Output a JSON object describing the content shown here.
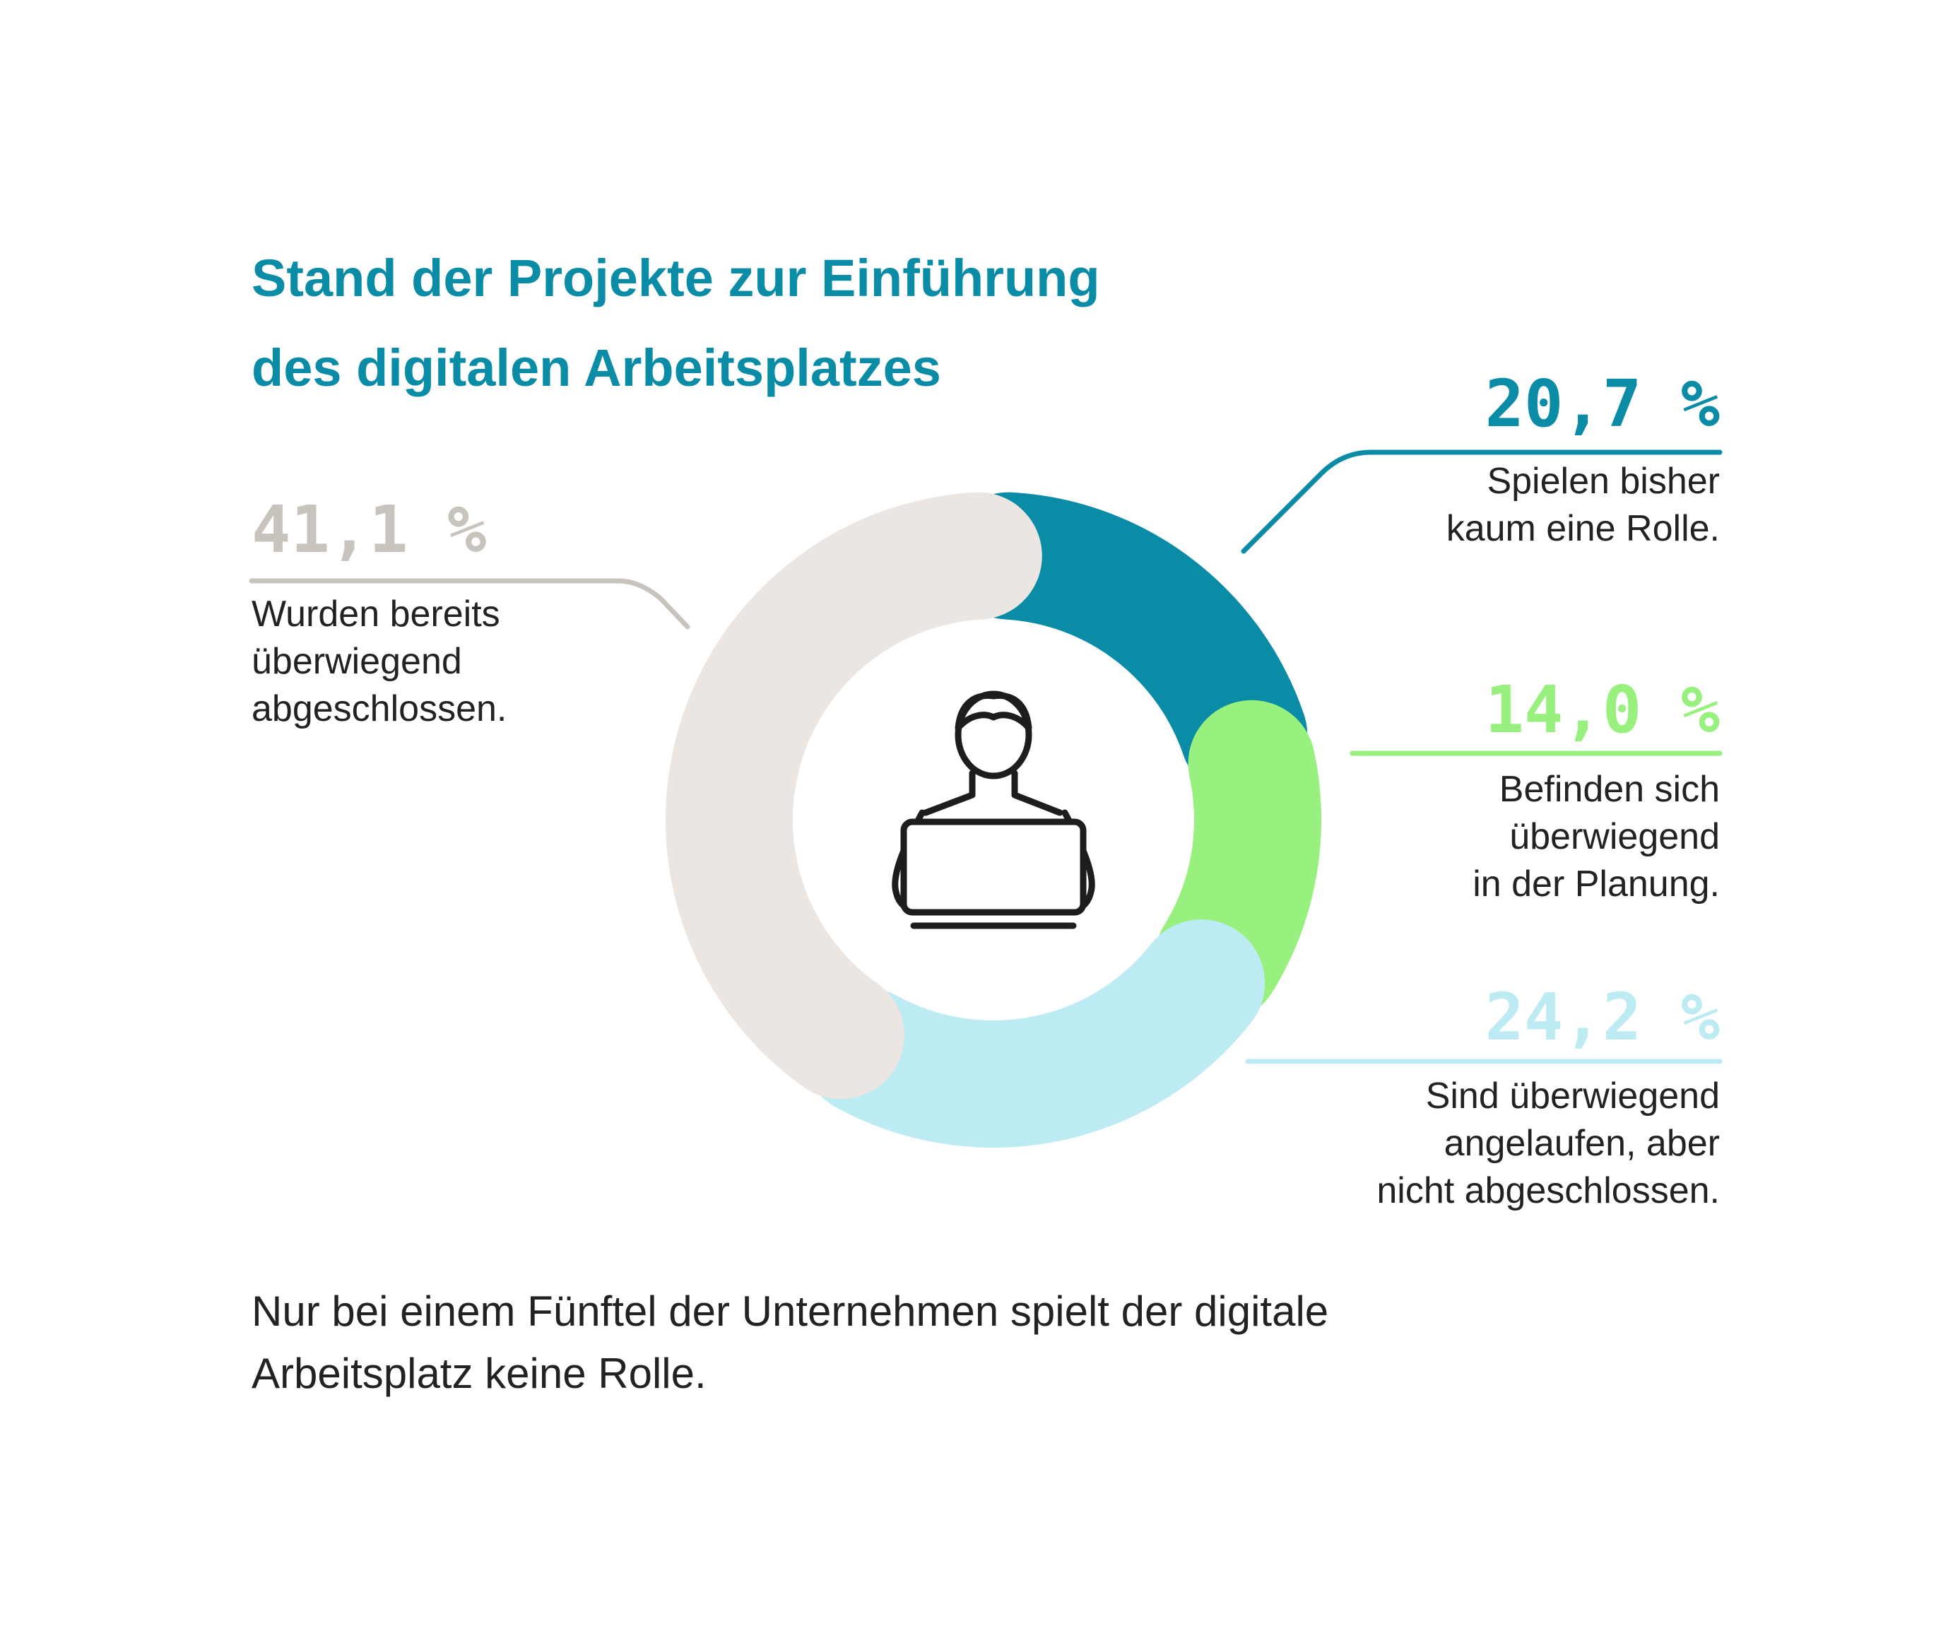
{
  "title_lines": [
    "Stand der Projekte zur Einführung",
    "des digitalen Arbeitsplatzes"
  ],
  "chart_data": {
    "type": "pie",
    "variant": "donut",
    "unit": "%",
    "slices": [
      {
        "value": 20.7,
        "label_value": "20,7 %",
        "label_lines": [
          "Spielen bisher",
          "kaum eine Rolle."
        ],
        "color": "#0a8ca7"
      },
      {
        "value": 14.0,
        "label_value": "14,0 %",
        "label_lines": [
          "Befinden sich",
          "überwiegend",
          "in der Planung."
        ],
        "color": "#98f07e"
      },
      {
        "value": 24.2,
        "label_value": "24,2 %",
        "label_lines": [
          "Sind überwiegend",
          "angelaufen, aber",
          "nicht abgeschlossen."
        ],
        "color": "#bdebf3"
      },
      {
        "value": 41.1,
        "label_value": "41,1 %",
        "label_lines": [
          "Wurden bereits",
          "überwiegend",
          "abgeschlossen."
        ],
        "color": "#ebe6e1"
      }
    ]
  },
  "center_icon": "person-at-laptop-icon",
  "leader_colors": [
    "#0a8ca7",
    "#98f07e",
    "#bdebf3",
    "#c8c3bd"
  ],
  "footnote_lines": [
    "Nur bei einem Fünftel der Unternehmen spielt der digitale",
    "Arbeitsplatz keine Rolle."
  ]
}
